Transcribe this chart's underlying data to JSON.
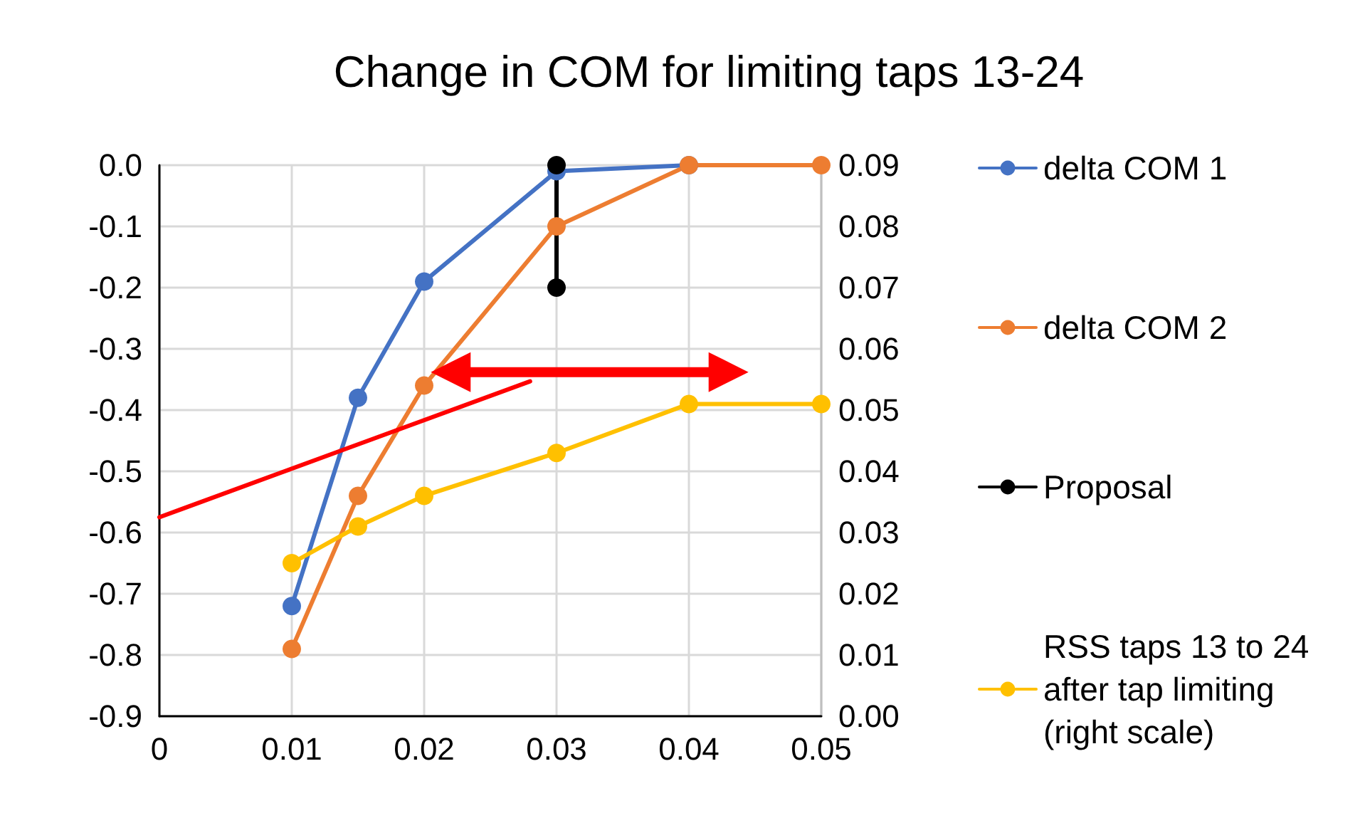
{
  "chart_data": {
    "type": "line",
    "title": "Change in COM for limiting taps 13-24",
    "xlim": [
      0,
      0.05
    ],
    "xticks": [
      0,
      0.01,
      0.02,
      0.03,
      0.04,
      0.05
    ],
    "ylim": [
      -0.9,
      0
    ],
    "yticks": [
      {
        "value": -0.9,
        "label": "-0.9"
      },
      {
        "value": -0.8,
        "label": "-0.8"
      },
      {
        "value": -0.7,
        "label": "-0.7"
      },
      {
        "value": -0.6,
        "label": "-0.6"
      },
      {
        "value": -0.5,
        "label": "-0.5"
      },
      {
        "value": -0.4,
        "label": "-0.4"
      },
      {
        "value": -0.3,
        "label": "-0.3"
      },
      {
        "value": -0.2,
        "label": "-0.2"
      },
      {
        "value": -0.1,
        "label": "-0.1"
      },
      {
        "value": 0,
        "label": "0.0"
      }
    ],
    "y2lim": [
      0,
      0.09
    ],
    "y2ticks": [
      {
        "value": 0,
        "label": "0.00"
      },
      {
        "value": 0.01,
        "label": "0.01"
      },
      {
        "value": 0.02,
        "label": "0.02"
      },
      {
        "value": 0.03,
        "label": "0.03"
      },
      {
        "value": 0.04,
        "label": "0.04"
      },
      {
        "value": 0.05,
        "label": "0.05"
      },
      {
        "value": 0.06,
        "label": "0.06"
      },
      {
        "value": 0.07,
        "label": "0.07"
      },
      {
        "value": 0.08,
        "label": "0.08"
      },
      {
        "value": 0.09,
        "label": "0.09"
      }
    ],
    "grid": true,
    "legend": "right",
    "marker": "circle",
    "series": [
      {
        "name": "delta COM 1",
        "color": "#4472c4",
        "x": [
          0.01,
          0.015,
          0.02,
          0.03,
          0.04
        ],
        "values": [
          -0.72,
          -0.38,
          -0.19,
          -0.01,
          0
        ]
      },
      {
        "name": "delta COM 2",
        "color": "#ed7d31",
        "x": [
          0.01,
          0.015,
          0.02,
          0.03,
          0.04,
          0.05
        ],
        "values": [
          -0.79,
          -0.54,
          -0.36,
          -0.1,
          0,
          0
        ]
      },
      {
        "name": "Proposal",
        "color": "#000000",
        "x": [
          0.03,
          0.03
        ],
        "values": [
          0,
          -0.2
        ]
      },
      {
        "color": "#ff0000",
        "marker": "none",
        "x": [
          0,
          0.028
        ],
        "values": [
          -0.575,
          -0.353
        ]
      },
      {
        "name": "RSS taps 13 to 24 after tap limiting (right scale)",
        "color": "#ffc000",
        "axis": "y2",
        "x": [
          0.01,
          0.015,
          0.02,
          0.03,
          0.04,
          0.05
        ],
        "values": [
          0.025,
          0.031,
          0.036,
          0.043,
          0.051,
          0.051
        ]
      }
    ]
  }
}
